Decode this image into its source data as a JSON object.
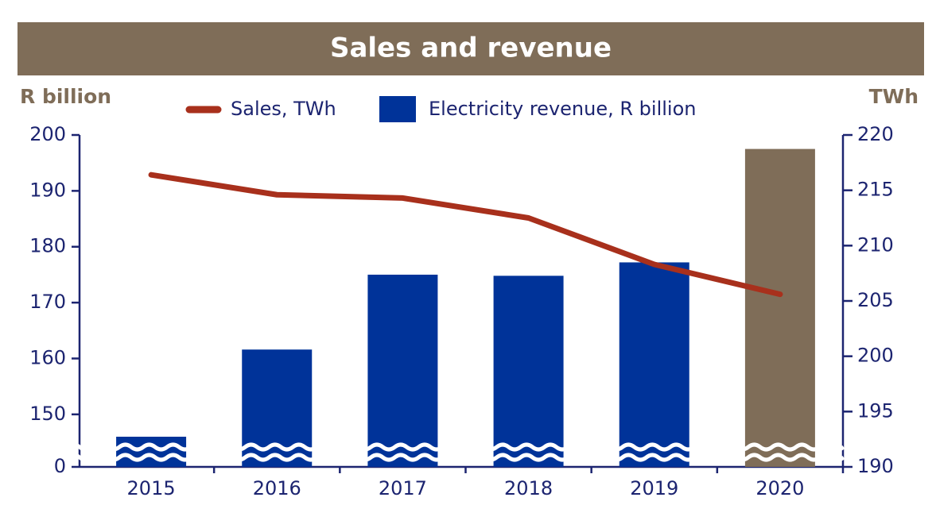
{
  "chart_data": {
    "type": "bar-line",
    "title": "Sales and revenue",
    "y_label": "R billion",
    "y2_label": "TWh",
    "categories": [
      "2015",
      "2016",
      "2017",
      "2018",
      "2019",
      "2020"
    ],
    "series": [
      {
        "name": "Electricity revenue, R billion",
        "type": "bar",
        "color": "#003399",
        "colors": [
          "#003399",
          "#003399",
          "#003399",
          "#003399",
          "#003399",
          "#7f6d58"
        ],
        "values": [
          146.0,
          161.6,
          175.0,
          174.8,
          177.2,
          197.5
        ]
      },
      {
        "name": "Sales, TWh",
        "type": "line",
        "axis": "y2",
        "color": "#a8301c",
        "values": [
          216.4,
          214.6,
          214.3,
          212.5,
          208.3,
          205.6
        ]
      }
    ],
    "ylim": [
      140.6,
      200
    ],
    "yticks": [
      0,
      150,
      160,
      170,
      180,
      190,
      200
    ],
    "y2lim": [
      190,
      220
    ],
    "y2ticks": [
      190,
      195,
      200,
      205,
      210,
      215,
      220
    ],
    "axis_break": true,
    "title_color": "#7f6d58"
  }
}
